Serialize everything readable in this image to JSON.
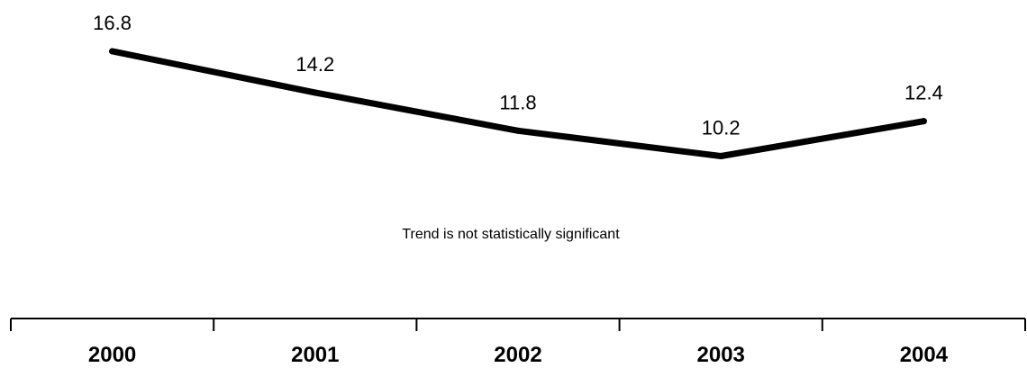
{
  "chart_data": {
    "type": "line",
    "categories": [
      "2000",
      "2001",
      "2002",
      "2003",
      "2004"
    ],
    "series": [
      {
        "values": [
          16.8,
          14.2,
          11.8,
          10.2,
          12.4
        ],
        "labels": [
          "16.8",
          "14.2",
          "11.8",
          "10.2",
          "12.4"
        ]
      }
    ],
    "annotation": "Trend is not statistically significant",
    "line_color": "#000000",
    "grid": false,
    "legend": "none"
  }
}
